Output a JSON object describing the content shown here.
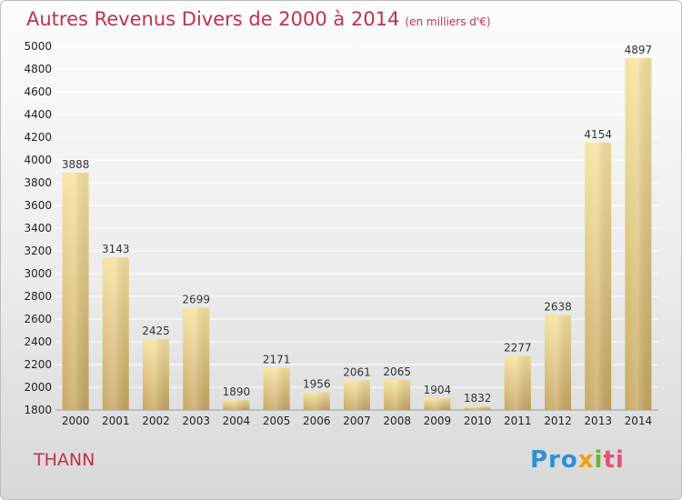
{
  "header": {
    "title": "Autres Revenus Divers de 2000 à 2014",
    "subtitle": "(en milliers d'€)"
  },
  "footer": {
    "commune": "THANN",
    "logo_parts": [
      "Pro",
      "x",
      "i",
      "ti"
    ]
  },
  "colors": {
    "title": "#c0314f",
    "bar_light": "#f7e4a0",
    "bar_dark": "#c7a863",
    "grid": "#ffffff"
  },
  "chart_data": {
    "type": "bar",
    "categories": [
      "2000",
      "2001",
      "2002",
      "2003",
      "2004",
      "2005",
      "2006",
      "2007",
      "2008",
      "2009",
      "2010",
      "2011",
      "2012",
      "2013",
      "2014"
    ],
    "values": [
      3888,
      3143,
      2425,
      2699,
      1890,
      2171,
      1956,
      2061,
      2065,
      1904,
      1832,
      2277,
      2638,
      4154,
      4897
    ],
    "ylim": [
      1800,
      5000
    ],
    "yticks": [
      1800,
      2000,
      2200,
      2400,
      2600,
      2800,
      3000,
      3200,
      3400,
      3600,
      3800,
      4000,
      4200,
      4400,
      4600,
      4800,
      5000
    ],
    "grid": true
  }
}
